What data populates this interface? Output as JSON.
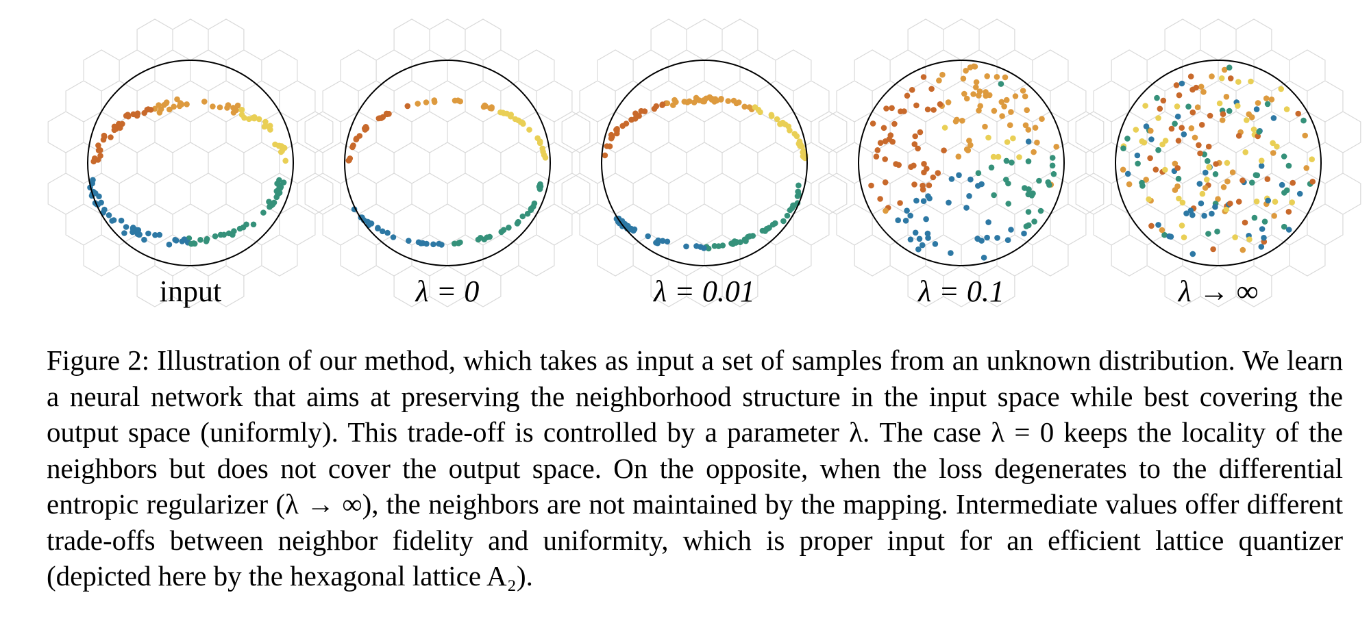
{
  "figure": {
    "panels": [
      {
        "label": "input"
      },
      {
        "label": "λ = 0"
      },
      {
        "label": "λ = 0.01"
      },
      {
        "label": "λ = 0.1"
      },
      {
        "label": "λ → ∞"
      }
    ],
    "colors": {
      "orange": "#c8692b",
      "amber": "#dd9a3e",
      "yellow": "#e9cf55",
      "blue": "#2d78a4",
      "teal": "#35917a",
      "lattice": "#d9d9d9",
      "circle": "#000000"
    }
  },
  "caption": {
    "text": "Figure 2: Illustration of our method, which takes as input a set of samples from an unknown distribution. We learn a neural network that aims at preserving the neighborhood structure in the input space while best covering the output space (uniformly). This trade-off is controlled by a parameter λ. The case λ = 0 keeps the locality of the neighbors but does not cover the output space. On the opposite, when the loss degenerates to the differential entropic regularizer (λ → ∞), the neighbors are not maintained by the mapping. Intermediate values offer different trade-offs between neighbor fidelity and uniformity, which is proper input for an efficient lattice quantizer (depicted here by the hexagonal lattice A₂)."
  }
}
